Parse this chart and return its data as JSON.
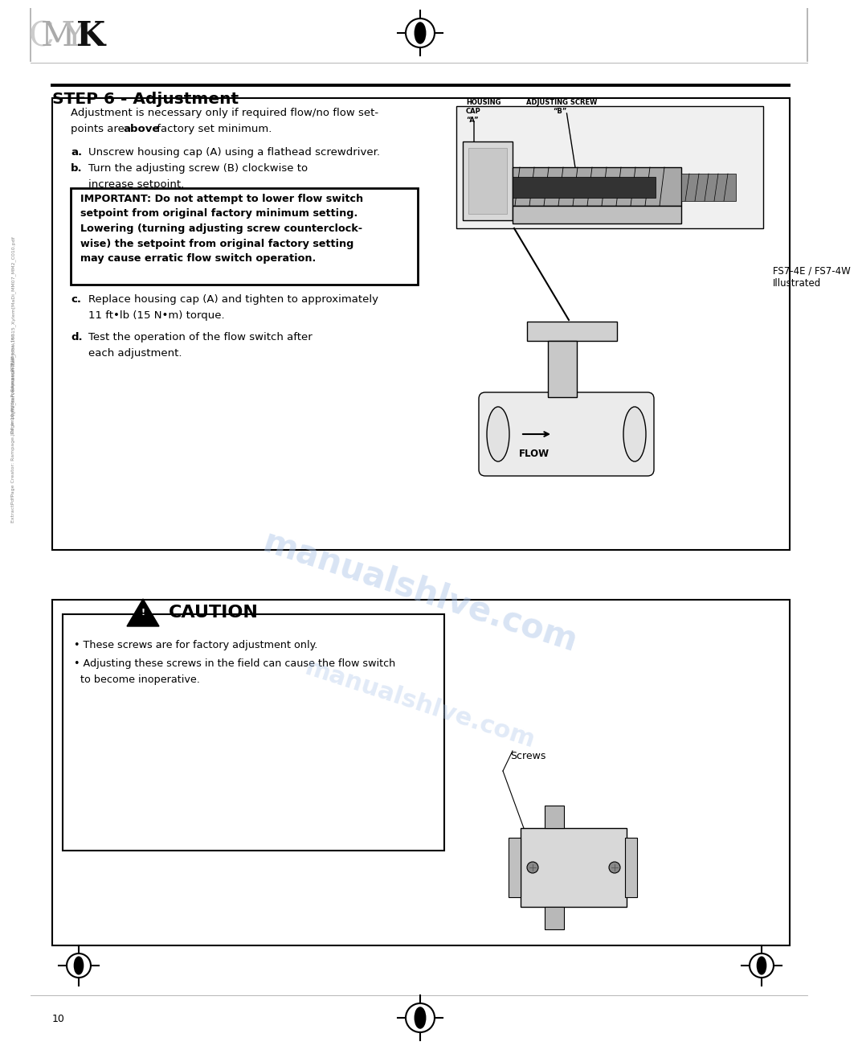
{
  "page_bg": "#ffffff",
  "title": "STEP 6 - Adjustment",
  "page_number": "10",
  "intro_line1": "Adjustment is necessary only if required flow/no flow set-",
  "intro_line2_pre": "points are ",
  "intro_line2_bold": "above",
  "intro_line2_post": " factory set minimum.",
  "step_a_label": "a.",
  "step_a_text": "Unscrew housing cap (A) using a flathead screwdriver.",
  "step_b_label": "b.",
  "step_b_text1": "Turn the adjusting screw (B) clockwise to",
  "step_b_text2": "increase setpoint.",
  "important_lines": [
    "IMPORTANT: Do not attempt to lower flow switch",
    "setpoint from original factory minimum setting.",
    "Lowering (turning adjusting screw counterclock-",
    "wise) the setpoint from original factory setting",
    "may cause erratic flow switch operation."
  ],
  "step_c_label": "c.",
  "step_c_text1": "Replace housing cap (A) and tighten to approximately",
  "step_c_text2": "11 ft•lb (15 N•m) torque.",
  "step_d_label": "d.",
  "step_d_text1": "Test the operation of the flow switch after",
  "step_d_text2": "each adjustment.",
  "fs7_label_line1": "FS7-4E / FS7-4W",
  "fs7_label_line2": "Illustrated",
  "flow_label": "FLOW",
  "housing_cap_labels": [
    "HOUSING",
    "CAP",
    "“A”"
  ],
  "adj_screw_labels": [
    "ADJUSTING SCREW",
    "“B”"
  ],
  "caution_title": "CAUTION",
  "caution_line1": "• These screws are for factory adjustment only.",
  "caution_line2a": "• Adjusting these screws in the field can cause the flow switch",
  "caution_line2b": "  to become inoperative.",
  "screws_label": "Screws",
  "watermark_text": "manualshlve.com",
  "watermark_color": "#aac4e8"
}
